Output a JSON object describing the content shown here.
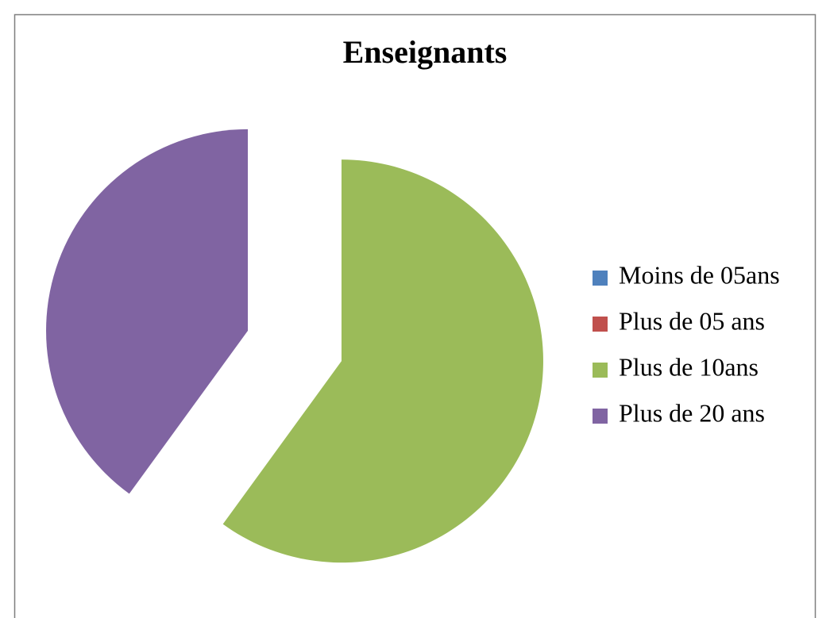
{
  "chart_data": {
    "type": "pie",
    "title": "Enseignants",
    "categories": [
      "Moins de 05ans",
      "Plus de 05 ans",
      "Plus de 10ans",
      "Plus de 20 ans"
    ],
    "values": [
      0,
      0,
      60,
      40
    ],
    "colors": [
      "#4f81bd",
      "#c0504d",
      "#9bbb59",
      "#8064a2"
    ],
    "legend": "right"
  }
}
